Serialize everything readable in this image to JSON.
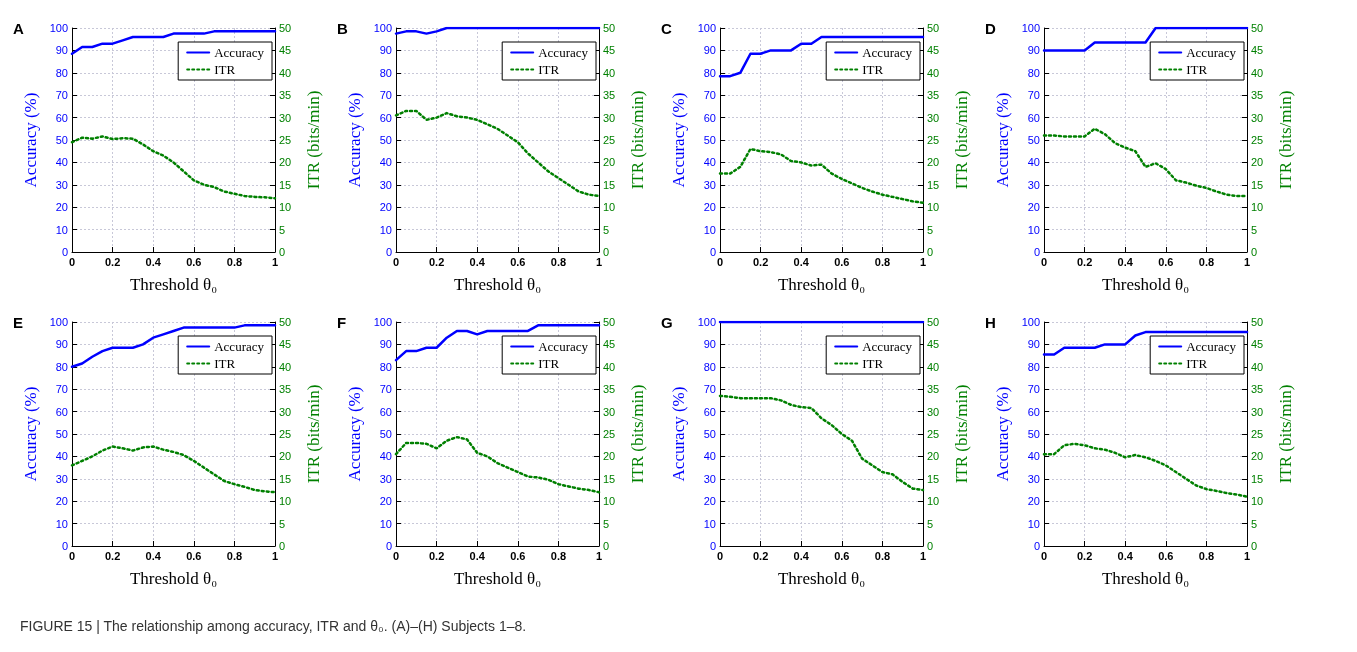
{
  "chart_data": [
    {
      "type": "line",
      "title": "A",
      "xlabel": "Threshold θ₀",
      "ylabel": "Accuracy (%)",
      "y2label": "ITR (bits/min)",
      "x": [
        0,
        0.05,
        0.1,
        0.15,
        0.2,
        0.25,
        0.3,
        0.35,
        0.4,
        0.45,
        0.5,
        0.55,
        0.6,
        0.65,
        0.7,
        0.75,
        0.8,
        0.85,
        0.9,
        0.95,
        1
      ],
      "xlim": [
        0,
        1
      ],
      "xticks": [
        0,
        0.2,
        0.4,
        0.6,
        0.8,
        1
      ],
      "ylim": [
        0,
        100
      ],
      "yticks": [
        0,
        10,
        20,
        30,
        40,
        50,
        60,
        70,
        80,
        90,
        100
      ],
      "y2lim": [
        0,
        50
      ],
      "y2ticks": [
        0,
        5,
        10,
        15,
        20,
        25,
        30,
        35,
        40,
        45,
        50
      ],
      "grid": true,
      "legend": "top right",
      "marker": "none",
      "series": [
        {
          "name": "Accuracy",
          "color": "#0000ff",
          "line_style": "solid",
          "values": [
            88.5,
            91.5,
            91.5,
            93,
            93,
            94.5,
            96,
            96,
            96,
            96,
            97.5,
            97.5,
            97.5,
            97.5,
            98.5,
            98.5,
            98.5,
            98.5,
            98.5,
            98.5,
            98.5
          ]
        },
        {
          "name": "ITR",
          "color": "#008000",
          "line_style": "dotted",
          "axis": "y2",
          "values": [
            24.5,
            25.5,
            25.3,
            25.8,
            25.2,
            25.4,
            25.3,
            24,
            22.5,
            21.5,
            20,
            18,
            16,
            15,
            14.5,
            13.5,
            13,
            12.5,
            12.3,
            12.2,
            12
          ]
        }
      ]
    },
    {
      "type": "line",
      "title": "B",
      "xlabel": "Threshold θ₀",
      "ylabel": "Accuracy (%)",
      "y2label": "ITR (bits/min)",
      "x": [
        0,
        0.05,
        0.1,
        0.15,
        0.2,
        0.25,
        0.3,
        0.35,
        0.4,
        0.45,
        0.5,
        0.55,
        0.6,
        0.65,
        0.7,
        0.75,
        0.8,
        0.85,
        0.9,
        0.95,
        1
      ],
      "xlim": [
        0,
        1
      ],
      "xticks": [
        0,
        0.2,
        0.4,
        0.6,
        0.8,
        1
      ],
      "ylim": [
        0,
        100
      ],
      "yticks": [
        0,
        10,
        20,
        30,
        40,
        50,
        60,
        70,
        80,
        90,
        100
      ],
      "y2lim": [
        0,
        50
      ],
      "y2ticks": [
        0,
        5,
        10,
        15,
        20,
        25,
        30,
        35,
        40,
        45,
        50
      ],
      "grid": true,
      "legend": "top right",
      "marker": "none",
      "series": [
        {
          "name": "Accuracy",
          "color": "#0000ff",
          "line_style": "solid",
          "values": [
            97.5,
            98.5,
            98.5,
            97.5,
            98.5,
            100,
            100,
            100,
            100,
            100,
            100,
            100,
            100,
            100,
            100,
            100,
            100,
            100,
            100,
            100,
            100
          ]
        },
        {
          "name": "ITR",
          "color": "#008000",
          "line_style": "dotted",
          "axis": "y2",
          "values": [
            30.5,
            31.5,
            31.5,
            29.5,
            30,
            31,
            30.3,
            30,
            29.5,
            28.5,
            27.5,
            26,
            24.5,
            22,
            20,
            18,
            16.5,
            15,
            13.5,
            12.8,
            12.5
          ]
        }
      ]
    },
    {
      "type": "line",
      "title": "C",
      "xlabel": "Threshold θ₀",
      "ylabel": "Accuracy (%)",
      "y2label": "ITR (bits/min)",
      "x": [
        0,
        0.05,
        0.1,
        0.15,
        0.2,
        0.25,
        0.3,
        0.35,
        0.4,
        0.45,
        0.5,
        0.55,
        0.6,
        0.65,
        0.7,
        0.75,
        0.8,
        0.85,
        0.9,
        0.95,
        1
      ],
      "xlim": [
        0,
        1
      ],
      "xticks": [
        0,
        0.2,
        0.4,
        0.6,
        0.8,
        1
      ],
      "ylim": [
        0,
        100
      ],
      "yticks": [
        0,
        10,
        20,
        30,
        40,
        50,
        60,
        70,
        80,
        90,
        100
      ],
      "y2lim": [
        0,
        50
      ],
      "y2ticks": [
        0,
        5,
        10,
        15,
        20,
        25,
        30,
        35,
        40,
        45,
        50
      ],
      "grid": true,
      "legend": "top right",
      "marker": "none",
      "series": [
        {
          "name": "Accuracy",
          "color": "#0000ff",
          "line_style": "solid",
          "values": [
            78.5,
            78.5,
            80,
            88.5,
            88.5,
            90,
            90,
            90,
            93,
            93,
            96,
            96,
            96,
            96,
            96,
            96,
            96,
            96,
            96,
            96,
            96
          ]
        },
        {
          "name": "ITR",
          "color": "#008000",
          "line_style": "dotted",
          "axis": "y2",
          "values": [
            17.5,
            17.5,
            19,
            23,
            22.5,
            22.3,
            21.8,
            20.3,
            20,
            19.3,
            19.5,
            17.5,
            16.3,
            15.3,
            14.3,
            13.5,
            12.8,
            12.3,
            11.8,
            11.3,
            11
          ]
        }
      ]
    },
    {
      "type": "line",
      "title": "D",
      "xlabel": "Threshold θ₀",
      "ylabel": "Accuracy (%)",
      "y2label": "ITR (bits/min)",
      "x": [
        0,
        0.05,
        0.1,
        0.15,
        0.2,
        0.25,
        0.3,
        0.35,
        0.4,
        0.45,
        0.5,
        0.55,
        0.6,
        0.65,
        0.7,
        0.75,
        0.8,
        0.85,
        0.9,
        0.95,
        1
      ],
      "xlim": [
        0,
        1
      ],
      "xticks": [
        0,
        0.2,
        0.4,
        0.6,
        0.8,
        1
      ],
      "ylim": [
        0,
        100
      ],
      "yticks": [
        0,
        10,
        20,
        30,
        40,
        50,
        60,
        70,
        80,
        90,
        100
      ],
      "y2lim": [
        0,
        50
      ],
      "y2ticks": [
        0,
        5,
        10,
        15,
        20,
        25,
        30,
        35,
        40,
        45,
        50
      ],
      "grid": true,
      "legend": "top right",
      "marker": "none",
      "series": [
        {
          "name": "Accuracy",
          "color": "#0000ff",
          "line_style": "solid",
          "values": [
            90,
            90,
            90,
            90,
            90,
            93.5,
            93.5,
            93.5,
            93.5,
            93.5,
            93.5,
            100,
            100,
            100,
            100,
            100,
            100,
            100,
            100,
            100,
            100
          ]
        },
        {
          "name": "ITR",
          "color": "#008000",
          "line_style": "dotted",
          "axis": "y2",
          "values": [
            26,
            26,
            25.8,
            25.8,
            25.8,
            27.5,
            26.3,
            24.3,
            23.3,
            22.5,
            19,
            19.8,
            18.5,
            16,
            15.5,
            14.8,
            14.3,
            13.5,
            12.8,
            12.5,
            12.5
          ]
        }
      ]
    },
    {
      "type": "line",
      "title": "E",
      "xlabel": "Threshold θ₀",
      "ylabel": "Accuracy (%)",
      "y2label": "ITR (bits/min)",
      "x": [
        0,
        0.05,
        0.1,
        0.15,
        0.2,
        0.25,
        0.3,
        0.35,
        0.4,
        0.45,
        0.5,
        0.55,
        0.6,
        0.65,
        0.7,
        0.75,
        0.8,
        0.85,
        0.9,
        0.95,
        1
      ],
      "xlim": [
        0,
        1
      ],
      "xticks": [
        0,
        0.2,
        0.4,
        0.6,
        0.8,
        1
      ],
      "ylim": [
        0,
        100
      ],
      "yticks": [
        0,
        10,
        20,
        30,
        40,
        50,
        60,
        70,
        80,
        90,
        100
      ],
      "y2lim": [
        0,
        50
      ],
      "y2ticks": [
        0,
        5,
        10,
        15,
        20,
        25,
        30,
        35,
        40,
        45,
        50
      ],
      "grid": true,
      "legend": "top right",
      "marker": "none",
      "series": [
        {
          "name": "Accuracy",
          "color": "#0000ff",
          "line_style": "solid",
          "values": [
            80,
            81.5,
            84.5,
            87,
            88.5,
            88.5,
            88.5,
            90,
            93,
            94.5,
            96,
            97.5,
            97.5,
            97.5,
            97.5,
            97.5,
            97.5,
            98.5,
            98.5,
            98.5,
            98.5
          ]
        },
        {
          "name": "ITR",
          "color": "#008000",
          "line_style": "dotted",
          "axis": "y2",
          "values": [
            18,
            19,
            20,
            21.3,
            22.2,
            21.8,
            21.3,
            22,
            22.2,
            21.5,
            21,
            20.3,
            19,
            17.5,
            16,
            14.5,
            13.8,
            13.2,
            12.5,
            12.2,
            12
          ]
        }
      ]
    },
    {
      "type": "line",
      "title": "F",
      "xlabel": "Threshold θ₀",
      "ylabel": "Accuracy (%)",
      "y2label": "ITR (bits/min)",
      "x": [
        0,
        0.05,
        0.1,
        0.15,
        0.2,
        0.25,
        0.3,
        0.35,
        0.4,
        0.45,
        0.5,
        0.55,
        0.6,
        0.65,
        0.7,
        0.75,
        0.8,
        0.85,
        0.9,
        0.95,
        1
      ],
      "xlim": [
        0,
        1
      ],
      "xticks": [
        0,
        0.2,
        0.4,
        0.6,
        0.8,
        1
      ],
      "ylim": [
        0,
        100
      ],
      "yticks": [
        0,
        10,
        20,
        30,
        40,
        50,
        60,
        70,
        80,
        90,
        100
      ],
      "y2lim": [
        0,
        50
      ],
      "y2ticks": [
        0,
        5,
        10,
        15,
        20,
        25,
        30,
        35,
        40,
        45,
        50
      ],
      "grid": true,
      "legend": "top right",
      "marker": "none",
      "series": [
        {
          "name": "Accuracy",
          "color": "#0000ff",
          "line_style": "solid",
          "values": [
            83,
            87,
            87,
            88.5,
            88.5,
            93,
            96,
            96,
            94.5,
            96,
            96,
            96,
            96,
            96,
            98.5,
            98.5,
            98.5,
            98.5,
            98.5,
            98.5,
            98.5
          ]
        },
        {
          "name": "ITR",
          "color": "#008000",
          "line_style": "dotted",
          "axis": "y2",
          "values": [
            20.5,
            23,
            23,
            22.8,
            21.8,
            23.5,
            24.3,
            23.8,
            20.8,
            20,
            18.5,
            17.5,
            16.5,
            15.5,
            15.3,
            14.8,
            13.8,
            13.3,
            12.8,
            12.5,
            12
          ]
        }
      ]
    },
    {
      "type": "line",
      "title": "G",
      "xlabel": "Threshold θ₀",
      "ylabel": "Accuracy (%)",
      "y2label": "ITR (bits/min)",
      "x": [
        0,
        0.05,
        0.1,
        0.15,
        0.2,
        0.25,
        0.3,
        0.35,
        0.4,
        0.45,
        0.5,
        0.55,
        0.6,
        0.65,
        0.7,
        0.75,
        0.8,
        0.85,
        0.9,
        0.95,
        1
      ],
      "xlim": [
        0,
        1
      ],
      "xticks": [
        0,
        0.2,
        0.4,
        0.6,
        0.8,
        1
      ],
      "ylim": [
        0,
        100
      ],
      "yticks": [
        0,
        10,
        20,
        30,
        40,
        50,
        60,
        70,
        80,
        90,
        100
      ],
      "y2lim": [
        0,
        50
      ],
      "y2ticks": [
        0,
        5,
        10,
        15,
        20,
        25,
        30,
        35,
        40,
        45,
        50
      ],
      "grid": true,
      "legend": "top right",
      "marker": "none",
      "series": [
        {
          "name": "Accuracy",
          "color": "#0000ff",
          "line_style": "solid",
          "values": [
            100,
            100,
            100,
            100,
            100,
            100,
            100,
            100,
            100,
            100,
            100,
            100,
            100,
            100,
            100,
            100,
            100,
            100,
            100,
            100,
            100
          ]
        },
        {
          "name": "ITR",
          "color": "#008000",
          "line_style": "dotted",
          "axis": "y2",
          "values": [
            33.5,
            33.3,
            33,
            33,
            33,
            33,
            32.5,
            31.5,
            31,
            30.8,
            28.5,
            27,
            25,
            23.5,
            19.5,
            18,
            16.5,
            16,
            14.3,
            12.8,
            12.5
          ]
        }
      ]
    },
    {
      "type": "line",
      "title": "H",
      "xlabel": "Threshold θ₀",
      "ylabel": "Accuracy (%)",
      "y2label": "ITR (bits/min)",
      "x": [
        0,
        0.05,
        0.1,
        0.15,
        0.2,
        0.25,
        0.3,
        0.35,
        0.4,
        0.45,
        0.5,
        0.55,
        0.6,
        0.65,
        0.7,
        0.75,
        0.8,
        0.85,
        0.9,
        0.95,
        1
      ],
      "xlim": [
        0,
        1
      ],
      "xticks": [
        0,
        0.2,
        0.4,
        0.6,
        0.8,
        1
      ],
      "ylim": [
        0,
        100
      ],
      "yticks": [
        0,
        10,
        20,
        30,
        40,
        50,
        60,
        70,
        80,
        90,
        100
      ],
      "y2lim": [
        0,
        50
      ],
      "y2ticks": [
        0,
        5,
        10,
        15,
        20,
        25,
        30,
        35,
        40,
        45,
        50
      ],
      "grid": true,
      "legend": "top right",
      "marker": "none",
      "annotations": [
        "FIGURE 15 | The relationship among accuracy, ITR and θ₀. (A)–(H) Subjects 1–8."
      ],
      "series": [
        {
          "name": "Accuracy",
          "color": "#0000ff",
          "line_style": "solid",
          "values": [
            85.5,
            85.5,
            88.5,
            88.5,
            88.5,
            88.5,
            90,
            90,
            90,
            94,
            95.5,
            95.5,
            95.5,
            95.5,
            95.5,
            95.5,
            95.5,
            95.5,
            95.5,
            95.5,
            95.5
          ]
        },
        {
          "name": "ITR",
          "color": "#008000",
          "line_style": "dotted",
          "axis": "y2",
          "values": [
            20.5,
            20.5,
            22.5,
            22.8,
            22.5,
            21.8,
            21.5,
            20.8,
            19.8,
            20.3,
            19.8,
            19,
            18,
            16.5,
            15,
            13.5,
            12.7,
            12.3,
            11.8,
            11.5,
            11
          ]
        }
      ]
    }
  ]
}
